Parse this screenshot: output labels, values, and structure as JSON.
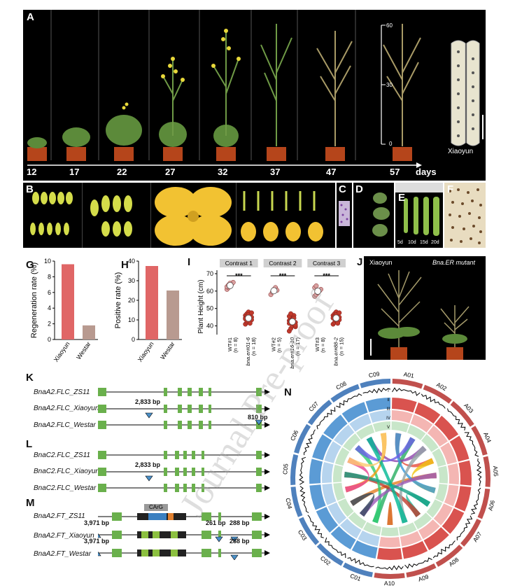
{
  "panels": {
    "A": "A",
    "B": "B",
    "C": "C",
    "D": "D",
    "E": "E",
    "F": "F",
    "G": "G",
    "H": "H",
    "I": "I",
    "J": "J",
    "K": "K",
    "L": "L",
    "M": "M",
    "N": "N"
  },
  "panel_a": {
    "days": [
      "12",
      "17",
      "22",
      "27",
      "32",
      "37",
      "47",
      "57"
    ],
    "days_unit": "days",
    "ruler_ticks": [
      "60",
      "30",
      "0"
    ],
    "pod_label": "Xiaoyun"
  },
  "panel_e": {
    "stages": [
      "5d",
      "10d",
      "15d",
      "20d"
    ]
  },
  "panel_j": {
    "left_label": "Xiaoyun",
    "right_label": "Bna.ER mutant"
  },
  "chart_g": {
    "type": "bar",
    "categories": [
      "Xiaoyun",
      "Westar"
    ],
    "values": [
      9.6,
      1.8
    ],
    "ylabel": "Regeneration rate (%)",
    "ylim": [
      0,
      10
    ],
    "yticks": [
      "0",
      "2",
      "4",
      "6",
      "8",
      "10"
    ],
    "colors": [
      "#e06666",
      "#b89a90"
    ]
  },
  "chart_h": {
    "type": "bar",
    "categories": [
      "Xiaoyun",
      "Westar"
    ],
    "values": [
      37.5,
      25.0
    ],
    "ylabel": "Positive rate (%)",
    "ylim": [
      0,
      40
    ],
    "yticks": [
      "0",
      "10",
      "20",
      "30",
      "40"
    ],
    "colors": [
      "#e06666",
      "#b89a90"
    ]
  },
  "chart_i": {
    "type": "scatter",
    "ylabel": "Plant Height (cm)",
    "ylim": [
      35,
      72
    ],
    "yticks": [
      "40",
      "50",
      "60",
      "70"
    ],
    "significance": "***",
    "contrasts": [
      {
        "title": "Contrast 1",
        "groups": [
          {
            "label": "WT#1",
            "n": "(n = 8)",
            "values": [
              61,
              62,
              63,
              64,
              65,
              62.5,
              63.5,
              64.5
            ],
            "color": "#d9a0a0"
          },
          {
            "label": "bna.er#01-6",
            "n": "(n = 18)",
            "values": [
              41,
              42,
              43,
              44,
              45,
              46,
              47,
              48,
              42.5,
              43.5,
              44.5,
              45.5,
              46.5,
              41.5,
              47.5,
              44,
              43,
              45
            ],
            "color": "#c0392b"
          }
        ]
      },
      {
        "title": "Contrast 2",
        "groups": [
          {
            "label": "WT#2",
            "n": "(n = 5)",
            "values": [
              58,
              59.5,
              61,
              62,
              60.5
            ],
            "color": "#d9a0a0"
          },
          {
            "label": "bna.er#16-10",
            "n": "(n = 17)",
            "values": [
              37,
              38.5,
              40,
              41,
              42,
              43,
              44,
              45,
              46,
              39.5,
              41.5,
              42.5,
              43.5,
              44.5,
              40.5,
              45.5,
              47
            ],
            "color": "#c0392b"
          }
        ]
      },
      {
        "title": "Contrast 3",
        "groups": [
          {
            "label": "WT#3",
            "n": "(n = 8)",
            "values": [
              57,
              58,
              59,
              60,
              61,
              62,
              63,
              59.5
            ],
            "color": "#d9a0a0"
          },
          {
            "label": "bna.er#88-2",
            "n": "(n = 15)",
            "values": [
              41,
              42,
              43,
              44,
              45,
              46,
              47,
              48,
              42.5,
              43.5,
              44.5,
              45.5,
              46.5,
              41.5,
              47.5
            ],
            "color": "#c0392b"
          }
        ]
      }
    ]
  },
  "panel_k": {
    "genes": [
      "BnaA2.FLC_ZS11",
      "BnaA2.FLC_Xiaoyun",
      "BnaA2.FLC_Westar"
    ],
    "insert1": "2,833 bp",
    "insert2": "810 bp"
  },
  "panel_l": {
    "genes": [
      "BnaC2.FLC_ZS11",
      "BnaC2.FLC_Xiaoyun",
      "BnaC2.FLC_Westar"
    ],
    "insert1": "2,833 bp"
  },
  "panel_m": {
    "genes": [
      "BnaA2.FT_ZS11",
      "BnaA2.FT_Xiaoyun",
      "BnaA2.FT_Westar"
    ],
    "carg": "CArG",
    "inserts": [
      "3,971 bp",
      "261 bp",
      "288 bp",
      "3,971 bp",
      "288 bp"
    ]
  },
  "panel_n": {
    "chromosomes": [
      "A01",
      "A02",
      "A03",
      "A04",
      "A05",
      "A06",
      "A07",
      "A08",
      "A09",
      "A10",
      "C01",
      "C02",
      "C03",
      "C04",
      "C05",
      "C06",
      "C07",
      "C08",
      "C09"
    ],
    "track_labels": [
      "I",
      "II",
      "III",
      "IV",
      "V"
    ],
    "a_color": "#c0504d",
    "c_color": "#4f81bd"
  },
  "watermark": "Journal Pre-proof"
}
